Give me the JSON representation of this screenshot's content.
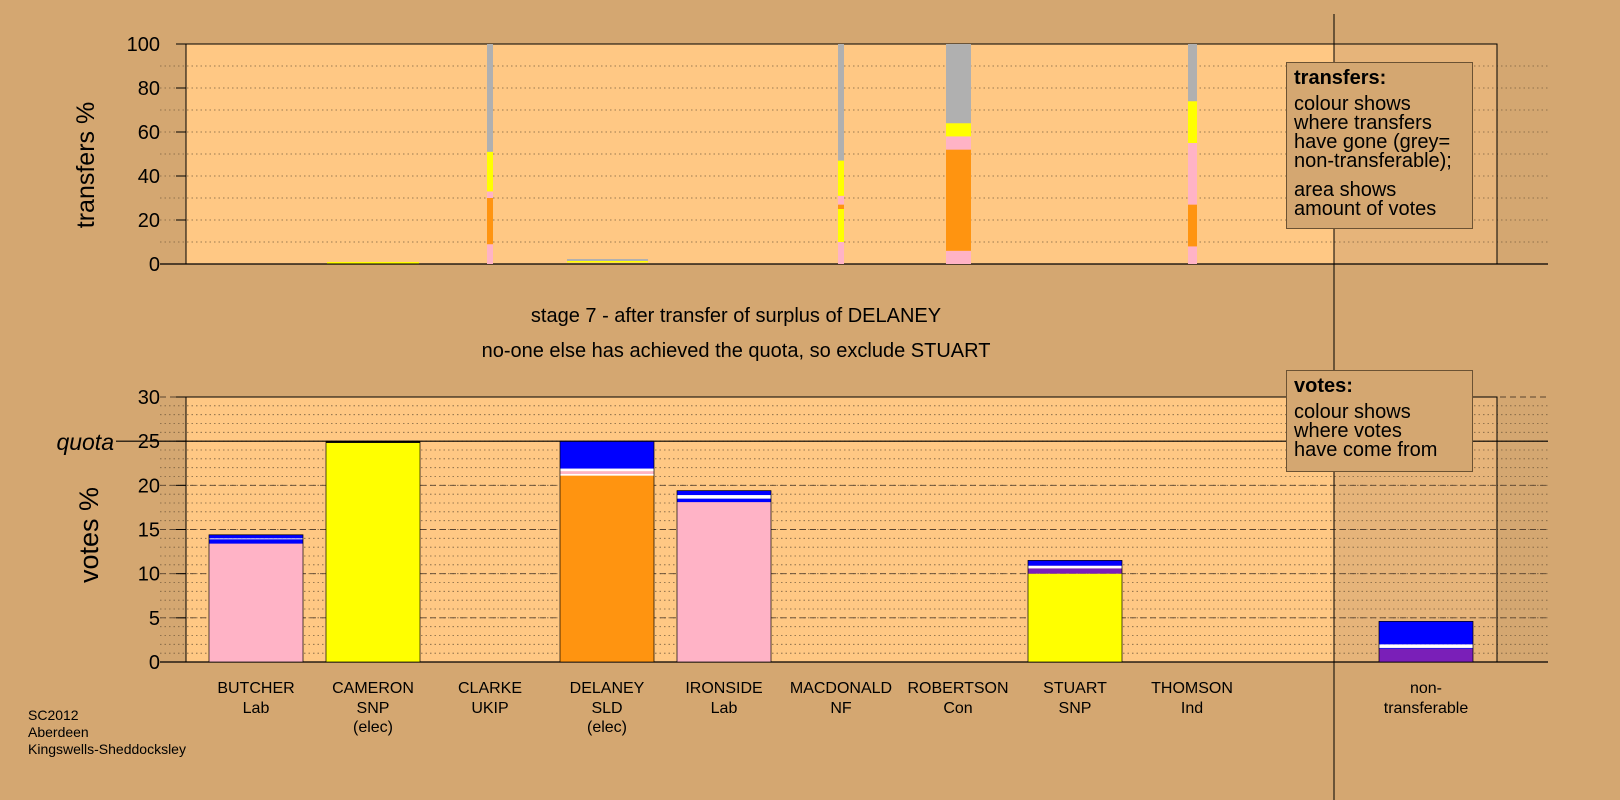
{
  "chart_data": [
    {
      "type": "bar",
      "subtype": "stacked",
      "ylabel": "transfers %",
      "ylim": [
        0,
        100
      ],
      "yticks": [
        0,
        20,
        40,
        60,
        80,
        100
      ],
      "grid": true,
      "categories": [
        "BUTCHER",
        "CAMERON",
        "CLARKE",
        "DELANEY",
        "IRONSIDE",
        "MACDONALD",
        "ROBERTSON",
        "STUART",
        "THOMSON"
      ],
      "bars": [
        {
          "category": "CLARKE",
          "segments": [
            {
              "color": "#ffb3c6",
              "from": 0,
              "to": 9
            },
            {
              "color": "#ff9410",
              "from": 9,
              "to": 30
            },
            {
              "color": "#ffb3c6",
              "from": 30,
              "to": 33
            },
            {
              "color": "#ffff00",
              "from": 33,
              "to": 51
            },
            {
              "color": "#b0b0b0",
              "from": 51,
              "to": 100
            }
          ]
        },
        {
          "category": "MACDONALD",
          "segments": [
            {
              "color": "#ffb3c6",
              "from": 0,
              "to": 10
            },
            {
              "color": "#ffff00",
              "from": 10,
              "to": 25
            },
            {
              "color": "#ff9410",
              "from": 25,
              "to": 27
            },
            {
              "color": "#ffb3c6",
              "from": 27,
              "to": 31
            },
            {
              "color": "#ffff00",
              "from": 31,
              "to": 47
            },
            {
              "color": "#b0b0b0",
              "from": 47,
              "to": 100
            }
          ]
        },
        {
          "category": "ROBERTSON",
          "segments": [
            {
              "color": "#ffb3c6",
              "from": 0,
              "to": 6
            },
            {
              "color": "#ff9410",
              "from": 6,
              "to": 52
            },
            {
              "color": "#ffb3c6",
              "from": 52,
              "to": 58
            },
            {
              "color": "#ffff00",
              "from": 58,
              "to": 64
            },
            {
              "color": "#b0b0b0",
              "from": 64,
              "to": 100
            }
          ]
        },
        {
          "category": "THOMSON",
          "segments": [
            {
              "color": "#ffb3c6",
              "from": 0,
              "to": 8
            },
            {
              "color": "#ff9410",
              "from": 8,
              "to": 27
            },
            {
              "color": "#ffb3c6",
              "from": 27,
              "to": 55
            },
            {
              "color": "#ffff00",
              "from": 55,
              "to": 74
            },
            {
              "color": "#b0b0b0",
              "from": 74,
              "to": 100
            }
          ]
        }
      ]
    },
    {
      "type": "bar",
      "subtype": "stacked",
      "ylabel": "votes %",
      "ylim": [
        0,
        30
      ],
      "yticks": [
        0,
        5,
        10,
        15,
        20,
        25,
        30
      ],
      "quota": 25,
      "grid": true,
      "categories": [
        "BUTCHER",
        "CAMERON",
        "CLARKE",
        "DELANEY",
        "IRONSIDE",
        "MACDONALD",
        "ROBERTSON",
        "STUART",
        "THOMSON",
        "non-transferable"
      ],
      "series_colors": {
        "Lab": "#ffb3c6",
        "SNP": "#ffff00",
        "SLD": "#ff9410",
        "transfer": "#0000ff",
        "non-transferable": "#b0b0b0"
      },
      "bars": [
        {
          "category": "BUTCHER",
          "segments": [
            {
              "color": "#ffb3c6",
              "from": 0,
              "to": 13.4
            },
            {
              "color": "#0000ff",
              "from": 13.4,
              "to": 13.9
            },
            {
              "color": "#ffffff",
              "from": 13.9,
              "to": 14.0
            },
            {
              "color": "#0000ff",
              "from": 14.0,
              "to": 14.4
            }
          ]
        },
        {
          "category": "CAMERON",
          "segments": [
            {
              "color": "#ffff00",
              "from": 0,
              "to": 24.8
            },
            {
              "color": "#000000",
              "from": 24.8,
              "to": 25.0
            }
          ]
        },
        {
          "category": "DELANEY",
          "segments": [
            {
              "color": "#ff9410",
              "from": 0,
              "to": 21.1
            },
            {
              "color": "#ffffff",
              "from": 21.1,
              "to": 21.3
            },
            {
              "color": "#ffb3c6",
              "from": 21.3,
              "to": 21.6
            },
            {
              "color": "#ffffff",
              "from": 21.6,
              "to": 21.9
            },
            {
              "color": "#0000ff",
              "from": 21.9,
              "to": 25.0
            }
          ]
        },
        {
          "category": "IRONSIDE",
          "segments": [
            {
              "color": "#ffb3c6",
              "from": 0,
              "to": 18.1
            },
            {
              "color": "#0000ff",
              "from": 18.1,
              "to": 18.5
            },
            {
              "color": "#ffffff",
              "from": 18.5,
              "to": 18.9
            },
            {
              "color": "#0000ff",
              "from": 18.9,
              "to": 19.4
            }
          ]
        },
        {
          "category": "STUART",
          "segments": [
            {
              "color": "#ffff00",
              "from": 0,
              "to": 10.0
            },
            {
              "color": "#7a1fb8",
              "from": 10.0,
              "to": 10.6
            },
            {
              "color": "#ffffff",
              "from": 10.6,
              "to": 10.9
            },
            {
              "color": "#0000ff",
              "from": 10.9,
              "to": 11.5
            }
          ]
        },
        {
          "category": "non-transferable",
          "segments": [
            {
              "color": "#7a1fb8",
              "from": 0,
              "to": 1.5
            },
            {
              "color": "#0000ff",
              "from": 1.5,
              "to": 1.6
            },
            {
              "color": "#ffffff",
              "from": 1.6,
              "to": 2.0
            },
            {
              "color": "#0000ff",
              "from": 2.0,
              "to": 4.6
            }
          ]
        }
      ]
    }
  ],
  "stage": {
    "line1": "stage 7 - after transfer of surplus of DELANEY",
    "line2": "no-one else has achieved the quota, so exclude STUART"
  },
  "quota_label": "quota",
  "candidates": [
    {
      "name": "BUTCHER",
      "party": "Lab",
      "note": ""
    },
    {
      "name": "CAMERON",
      "party": "SNP",
      "note": "(elec)"
    },
    {
      "name": "CLARKE",
      "party": "UKIP",
      "note": ""
    },
    {
      "name": "DELANEY",
      "party": "SLD",
      "note": "(elec)"
    },
    {
      "name": "IRONSIDE",
      "party": "Lab",
      "note": ""
    },
    {
      "name": "MACDONALD",
      "party": "NF",
      "note": ""
    },
    {
      "name": "ROBERTSON",
      "party": "Con",
      "note": ""
    },
    {
      "name": "STUART",
      "party": "SNP",
      "note": ""
    },
    {
      "name": "THOMSON",
      "party": "Ind",
      "note": ""
    }
  ],
  "nontransferable_label": {
    "line1": "non-",
    "line2": "transferable"
  },
  "legend_transfers": {
    "title": "transfers:",
    "text1": [
      "colour shows",
      "where transfers",
      "have gone (grey=",
      "non-transferable);"
    ],
    "text2": [
      "area shows",
      "amount of votes"
    ]
  },
  "legend_votes": {
    "title": "votes:",
    "text": [
      "colour shows",
      "where votes",
      "have come from"
    ]
  },
  "footer": {
    "line1": "SC2012",
    "line2": "Aberdeen",
    "line3": "Kingswells-Sheddocksley"
  },
  "colors": {
    "background": "#d4a771",
    "plot_area": "#ffc884",
    "plot_area_shaded": "#e6b47a"
  }
}
